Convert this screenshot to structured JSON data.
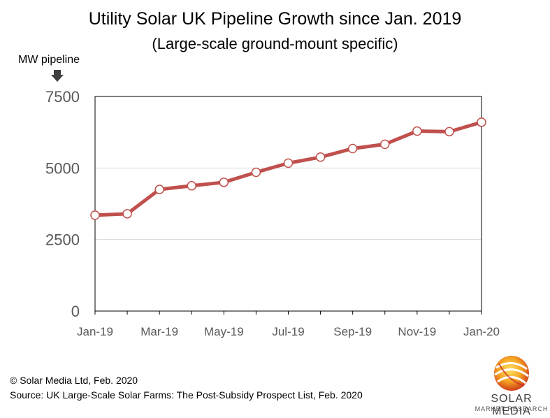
{
  "chart_data": {
    "type": "line",
    "title": "Utility Solar UK Pipeline Growth since Jan. 2019",
    "subtitle": "(Large-scale ground-mount specific)",
    "ylabel": "MW pipeline",
    "xlabel": "",
    "ylim": [
      0,
      7500
    ],
    "yticks": [
      "0",
      "2500",
      "5000",
      "7500"
    ],
    "ytick_values": [
      0,
      2500,
      5000,
      7500
    ],
    "categories": [
      "Jan-19",
      "Feb-19",
      "Mar-19",
      "Apr-19",
      "May-19",
      "Jun-19",
      "Jul-19",
      "Aug-19",
      "Sep-19",
      "Oct-19",
      "Nov-19",
      "Dec-19",
      "Jan-20"
    ],
    "xtick_labels": [
      "Jan-19",
      "",
      "Mar-19",
      "",
      "May-19",
      "",
      "Jul-19",
      "",
      "Sep-19",
      "",
      "Nov-19",
      "",
      "Jan-20"
    ],
    "series": [
      {
        "values": [
          3350,
          3400,
          4250,
          4380,
          4500,
          4850,
          5170,
          5380,
          5680,
          5830,
          6290,
          6270,
          6600
        ]
      }
    ],
    "grid": "horizontal",
    "legend": "none",
    "line_color": "#c0504d"
  },
  "footer": {
    "copyright": "© Solar Media Ltd, Feb. 2020",
    "source": "Source: UK Large-Scale Solar Farms: The Post-Subsidy Prospect List, Feb. 2020"
  },
  "logo": {
    "name": "SOLAR MEDIA",
    "subtitle": "MARKET RESEARCH"
  }
}
